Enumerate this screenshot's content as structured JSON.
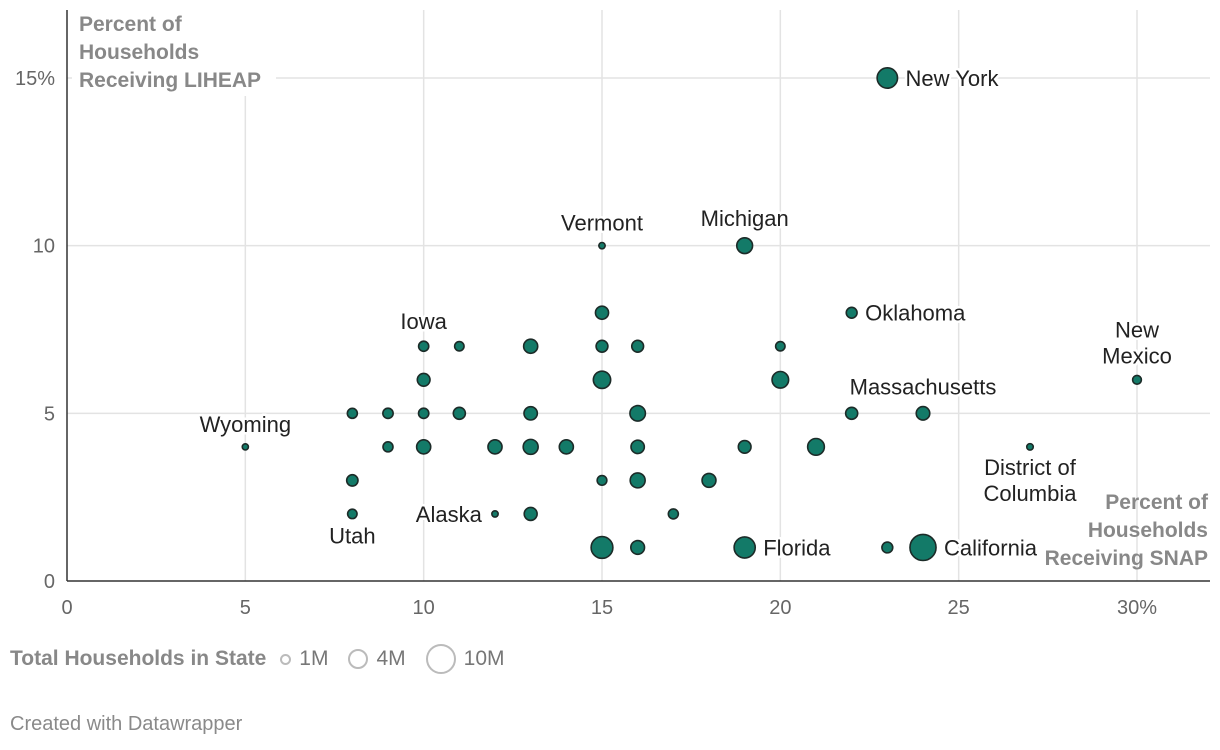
{
  "chart_data": {
    "type": "scatter",
    "y_axis_title": [
      "Percent of",
      "Households",
      "Receiving LIHEAP"
    ],
    "x_axis_title": [
      "Percent of",
      "Households",
      "Receiving SNAP"
    ],
    "xlim": [
      0,
      32
    ],
    "ylim": [
      0,
      17
    ],
    "x_ticks": [
      {
        "value": 0,
        "label": "0"
      },
      {
        "value": 5,
        "label": "5"
      },
      {
        "value": 10,
        "label": "10"
      },
      {
        "value": 15,
        "label": "15"
      },
      {
        "value": 20,
        "label": "20"
      },
      {
        "value": 25,
        "label": "25"
      },
      {
        "value": 30,
        "label": "30%"
      }
    ],
    "y_ticks": [
      {
        "value": 0,
        "label": "0"
      },
      {
        "value": 5,
        "label": "5"
      },
      {
        "value": 10,
        "label": "10"
      },
      {
        "value": 15,
        "label": "15%"
      }
    ],
    "size_legend": {
      "title": "Total Households in State",
      "items": [
        {
          "value": 1,
          "label": "1M"
        },
        {
          "value": 4,
          "label": "4M"
        },
        {
          "value": 10,
          "label": "10M"
        }
      ]
    },
    "point_color": "#137a68",
    "point_stroke": "#1c2b28",
    "points": [
      {
        "x": 23,
        "y": 15,
        "households": 7.4,
        "label": [
          "New York"
        ],
        "label_pos": "right"
      },
      {
        "x": 15,
        "y": 10,
        "households": 0.27,
        "label": [
          "Vermont"
        ],
        "label_pos": "top"
      },
      {
        "x": 19,
        "y": 10,
        "households": 4.0,
        "label": [
          "Michigan"
        ],
        "label_pos": "top"
      },
      {
        "x": 22,
        "y": 8,
        "households": 1.5,
        "label": [
          "Oklahoma"
        ],
        "label_pos": "right"
      },
      {
        "x": 30,
        "y": 6,
        "households": 0.8,
        "label": [
          "New",
          "Mexico"
        ],
        "label_pos": "top"
      },
      {
        "x": 10,
        "y": 7,
        "households": 1.25,
        "label": [
          "Iowa"
        ],
        "label_pos": "top"
      },
      {
        "x": 24,
        "y": 5,
        "households": 2.7,
        "label": [
          "Massachusetts"
        ],
        "label_pos": "top"
      },
      {
        "x": 5,
        "y": 4,
        "households": 0.24,
        "label": [
          "Wyoming"
        ],
        "label_pos": "top"
      },
      {
        "x": 27,
        "y": 4,
        "households": 0.3,
        "label": [
          "District of",
          "Columbia"
        ],
        "label_pos": "bottom"
      },
      {
        "x": 12,
        "y": 2,
        "households": 0.27,
        "label": [
          "Alaska"
        ],
        "label_pos": "left"
      },
      {
        "x": 8,
        "y": 2,
        "households": 1.0,
        "label": [
          "Utah"
        ],
        "label_pos": "bottom"
      },
      {
        "x": 19,
        "y": 1,
        "households": 8.0,
        "label": [
          "Florida"
        ],
        "label_pos": "right"
      },
      {
        "x": 24,
        "y": 1,
        "households": 13.0,
        "label": [
          "California"
        ],
        "label_pos": "right"
      },
      {
        "x": 15,
        "y": 8,
        "households": 2.5
      },
      {
        "x": 11,
        "y": 7,
        "households": 1.0
      },
      {
        "x": 13,
        "y": 7,
        "households": 3.0
      },
      {
        "x": 15,
        "y": 7,
        "households": 1.9
      },
      {
        "x": 16,
        "y": 7,
        "households": 1.9
      },
      {
        "x": 20,
        "y": 7,
        "households": 1.0
      },
      {
        "x": 10,
        "y": 6,
        "households": 2.3
      },
      {
        "x": 15,
        "y": 6,
        "households": 5.0
      },
      {
        "x": 20,
        "y": 6,
        "households": 4.5
      },
      {
        "x": 8,
        "y": 5,
        "households": 1.2
      },
      {
        "x": 9,
        "y": 5,
        "households": 1.3
      },
      {
        "x": 10,
        "y": 5,
        "households": 1.3
      },
      {
        "x": 11,
        "y": 5,
        "households": 2.0
      },
      {
        "x": 13,
        "y": 5,
        "households": 2.6
      },
      {
        "x": 16,
        "y": 5,
        "households": 3.8
      },
      {
        "x": 22,
        "y": 5,
        "households": 2.0
      },
      {
        "x": 9,
        "y": 4,
        "households": 1.2
      },
      {
        "x": 10,
        "y": 4,
        "households": 3.0
      },
      {
        "x": 12,
        "y": 4,
        "households": 3.0
      },
      {
        "x": 13,
        "y": 4,
        "households": 3.5
      },
      {
        "x": 14,
        "y": 4,
        "households": 3.0
      },
      {
        "x": 16,
        "y": 4,
        "households": 2.6
      },
      {
        "x": 19,
        "y": 4,
        "households": 2.3
      },
      {
        "x": 21,
        "y": 4,
        "households": 4.6
      },
      {
        "x": 8,
        "y": 3,
        "households": 1.7
      },
      {
        "x": 15,
        "y": 3,
        "households": 1.1
      },
      {
        "x": 16,
        "y": 3,
        "households": 3.5
      },
      {
        "x": 18,
        "y": 3,
        "households": 2.9
      },
      {
        "x": 13,
        "y": 2,
        "households": 2.4
      },
      {
        "x": 17,
        "y": 2,
        "households": 1.2
      },
      {
        "x": 15,
        "y": 1,
        "households": 8.6
      },
      {
        "x": 16,
        "y": 1,
        "households": 2.8
      },
      {
        "x": 23,
        "y": 1,
        "households": 1.5
      }
    ]
  },
  "credit": "Created with Datawrapper"
}
